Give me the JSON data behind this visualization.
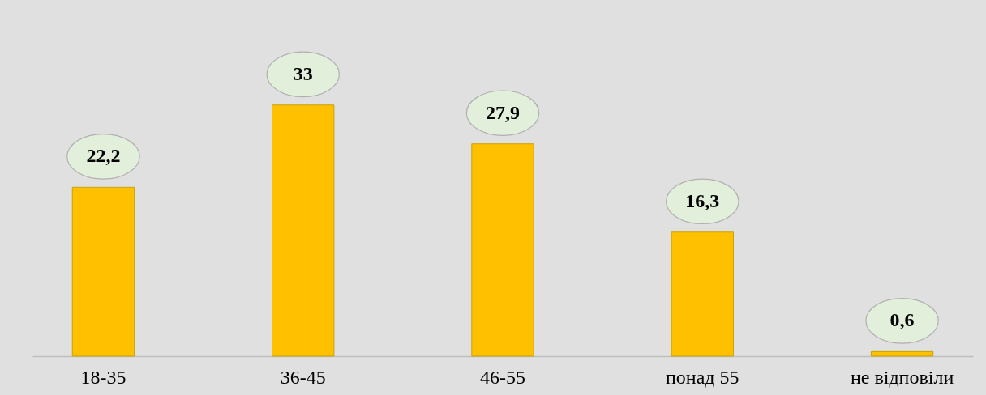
{
  "chart_data": {
    "type": "bar",
    "categories": [
      "18-35",
      "36-45",
      "46-55",
      "понад 55",
      "не відповіли"
    ],
    "values": [
      22.2,
      33,
      27.9,
      16.3,
      0.6
    ],
    "value_labels": [
      "22,2",
      "33",
      "27,9",
      "16,3",
      "0,6"
    ],
    "color": "#ffc000"
  }
}
